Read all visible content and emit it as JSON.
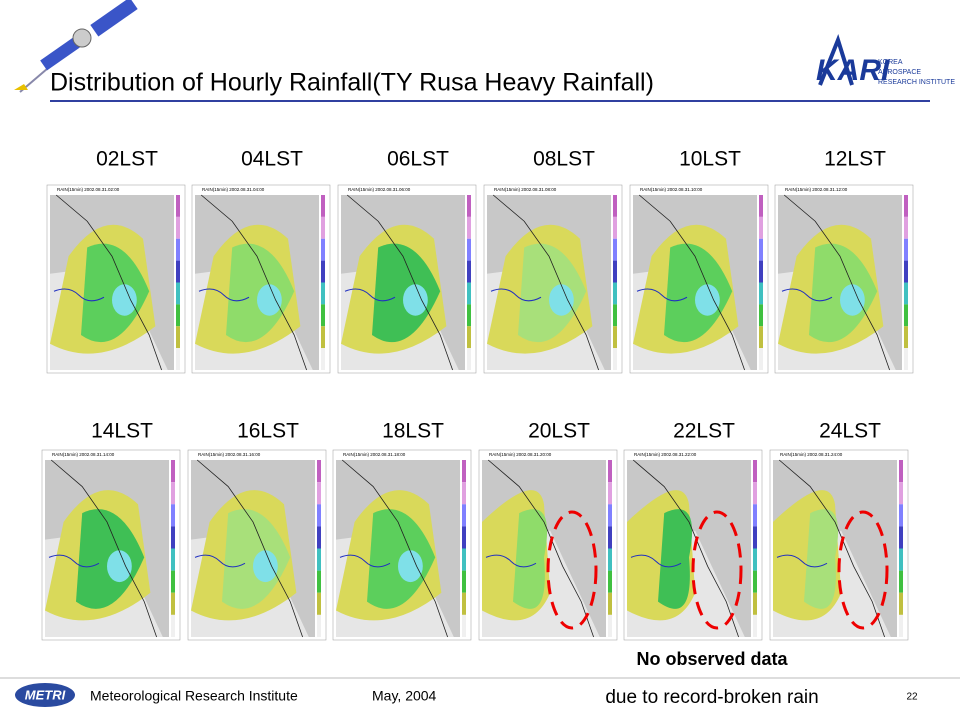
{
  "header": {
    "title": "Distribution of Hourly Rainfall(TY Rusa Heavy Rainfall)",
    "logo": "KARI",
    "logo_lines": [
      "KOREA",
      "AEROSPACE",
      "RESEARCH INSTITUTE"
    ]
  },
  "rows": [
    {
      "panels": [
        {
          "time": "02LST",
          "caption": "RAIN(15min) 2002.08.31.02:00"
        },
        {
          "time": "04LST",
          "caption": "RAIN(15min) 2002.08.31.04:00"
        },
        {
          "time": "06LST",
          "caption": "RAIN(15min) 2002.08.31.06:00"
        },
        {
          "time": "08LST",
          "caption": "RAIN(15min) 2002.08.31.08:00"
        },
        {
          "time": "10LST",
          "caption": "RAIN(15min) 2002.08.31.10:00"
        },
        {
          "time": "12LST",
          "caption": "RAIN(15min) 2002.08.31.12:00"
        }
      ]
    },
    {
      "panels": [
        {
          "time": "14LST",
          "caption": "RAIN(15min) 2002.08.31.14:00"
        },
        {
          "time": "16LST",
          "caption": "RAIN(15min) 2002.08.31.16:00"
        },
        {
          "time": "18LST",
          "caption": "RAIN(15min) 2002.08.31.18:00"
        },
        {
          "time": "20LST",
          "caption": "RAIN(15min) 2002.08.31.20:00"
        },
        {
          "time": "22LST",
          "caption": "RAIN(15min) 2002.08.31.22:00"
        },
        {
          "time": "24LST",
          "caption": "RAIN(15min) 2002.08.31.24:00"
        }
      ]
    }
  ],
  "note": [
    "No observed data",
    "due to record-broken rain"
  ],
  "footer": {
    "logo": "METRI",
    "institute": "Meteorological Research Institute",
    "date": "May, 2004",
    "page": "22"
  }
}
